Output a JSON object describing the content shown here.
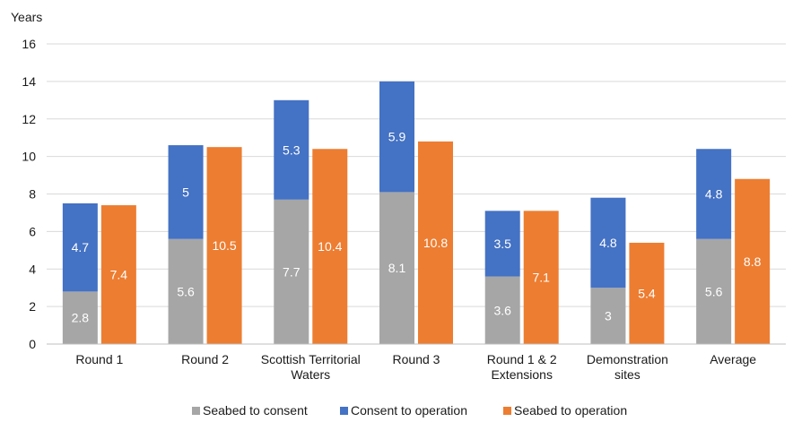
{
  "chart_data": {
    "type": "bar",
    "y_unit_label": "Years",
    "ylim": [
      0,
      16
    ],
    "yticks": [
      0,
      2,
      4,
      6,
      8,
      10,
      12,
      14,
      16
    ],
    "grid": "horizontal",
    "legend_position": "bottom",
    "categories": [
      [
        "Round 1"
      ],
      [
        "Round 2"
      ],
      [
        "Scottish Territorial",
        "Waters"
      ],
      [
        "Round 3"
      ],
      [
        "Round 1 & 2",
        "Extensions"
      ],
      [
        "Demonstration",
        "sites"
      ],
      [
        "Average"
      ]
    ],
    "series": [
      {
        "name": "Seabed to consent",
        "color": "#a6a6a6",
        "stack": "A",
        "values": [
          2.8,
          5.6,
          7.7,
          8.1,
          3.6,
          3,
          5.6
        ]
      },
      {
        "name": "Consent to operation",
        "color": "#4472c4",
        "stack": "A",
        "values": [
          4.7,
          5,
          5.3,
          5.9,
          3.5,
          4.8,
          4.8
        ]
      },
      {
        "name": "Seabed to operation",
        "color": "#ed7d31",
        "stack": "B",
        "values": [
          7.4,
          10.5,
          10.4,
          10.8,
          7.1,
          5.4,
          8.8
        ]
      }
    ]
  }
}
